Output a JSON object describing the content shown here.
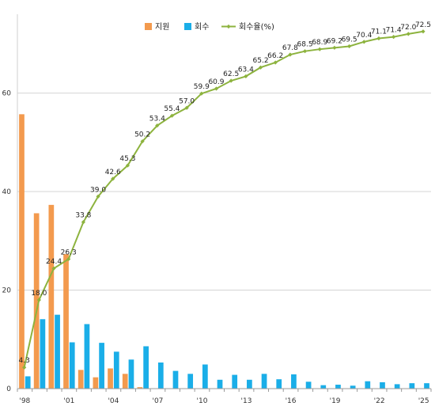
{
  "chart_data": {
    "type": "bar",
    "years": [
      "'98",
      "'99",
      "'00",
      "'01",
      "'02",
      "'03",
      "'04",
      "'05",
      "'06",
      "'07",
      "'08",
      "'09",
      "'10",
      "'11",
      "'12",
      "'13",
      "'14",
      "'15",
      "'16",
      "'17",
      "'18",
      "'19",
      "'20",
      "'21",
      "'22",
      "'23",
      "'24",
      "'25"
    ],
    "x_tick_labels": [
      "'98",
      "'01",
      "'04",
      "'07",
      "'10",
      "'13",
      "'16",
      "'19",
      "'22",
      "'25"
    ],
    "y_tick_labels": [
      "0",
      "20",
      "40",
      "60"
    ],
    "ylim": [
      0,
      76
    ],
    "grid": true,
    "legend_position": "top-center",
    "series": [
      {
        "name": "지원",
        "type": "bar",
        "color": "#F39A4E",
        "values": [
          55.7,
          35.6,
          37.3,
          27.3,
          3.8,
          2.3,
          4.1,
          3.0,
          0.3,
          0.0,
          0.0,
          0.0,
          0.0,
          0.0,
          0.0,
          0.0,
          0.0,
          0.0,
          0.0,
          0.0,
          0.0,
          0.0,
          0.0,
          0.0,
          0.0,
          0.0,
          0.0,
          0.0
        ]
      },
      {
        "name": "회수",
        "type": "bar",
        "color": "#1AAEE8",
        "values": [
          2.5,
          14.1,
          15.0,
          9.4,
          13.1,
          9.3,
          7.5,
          5.9,
          8.6,
          5.3,
          3.6,
          3.0,
          4.9,
          1.8,
          2.8,
          1.8,
          3.0,
          1.9,
          2.9,
          1.4,
          0.7,
          0.8,
          0.6,
          1.5,
          1.3,
          0.9,
          1.1,
          1.1
        ]
      },
      {
        "name": "회수율(%)",
        "type": "line",
        "color": "#8DB33E",
        "values": [
          4.3,
          18.0,
          24.4,
          26.3,
          33.8,
          39.0,
          42.6,
          45.3,
          50.2,
          53.4,
          55.4,
          57.0,
          59.9,
          60.9,
          62.5,
          63.4,
          65.2,
          66.2,
          67.8,
          68.5,
          68.9,
          69.2,
          69.5,
          70.4,
          71.1,
          71.4,
          72.0,
          72.5
        ],
        "labels": [
          "4.3",
          "18.0",
          "24.4",
          "26.3",
          "33.8",
          "39.0",
          "42.6",
          "45.3",
          "50.2",
          "53.4",
          "55.4",
          "57.0",
          "59.9",
          "60.9",
          "62.5",
          "63.4",
          "65.2",
          "66.2",
          "67.8",
          "68.5",
          "68.9",
          "69.2",
          "69.5",
          "70.4",
          "71.1",
          "71.4",
          "72.0",
          "72.5"
        ]
      }
    ]
  }
}
